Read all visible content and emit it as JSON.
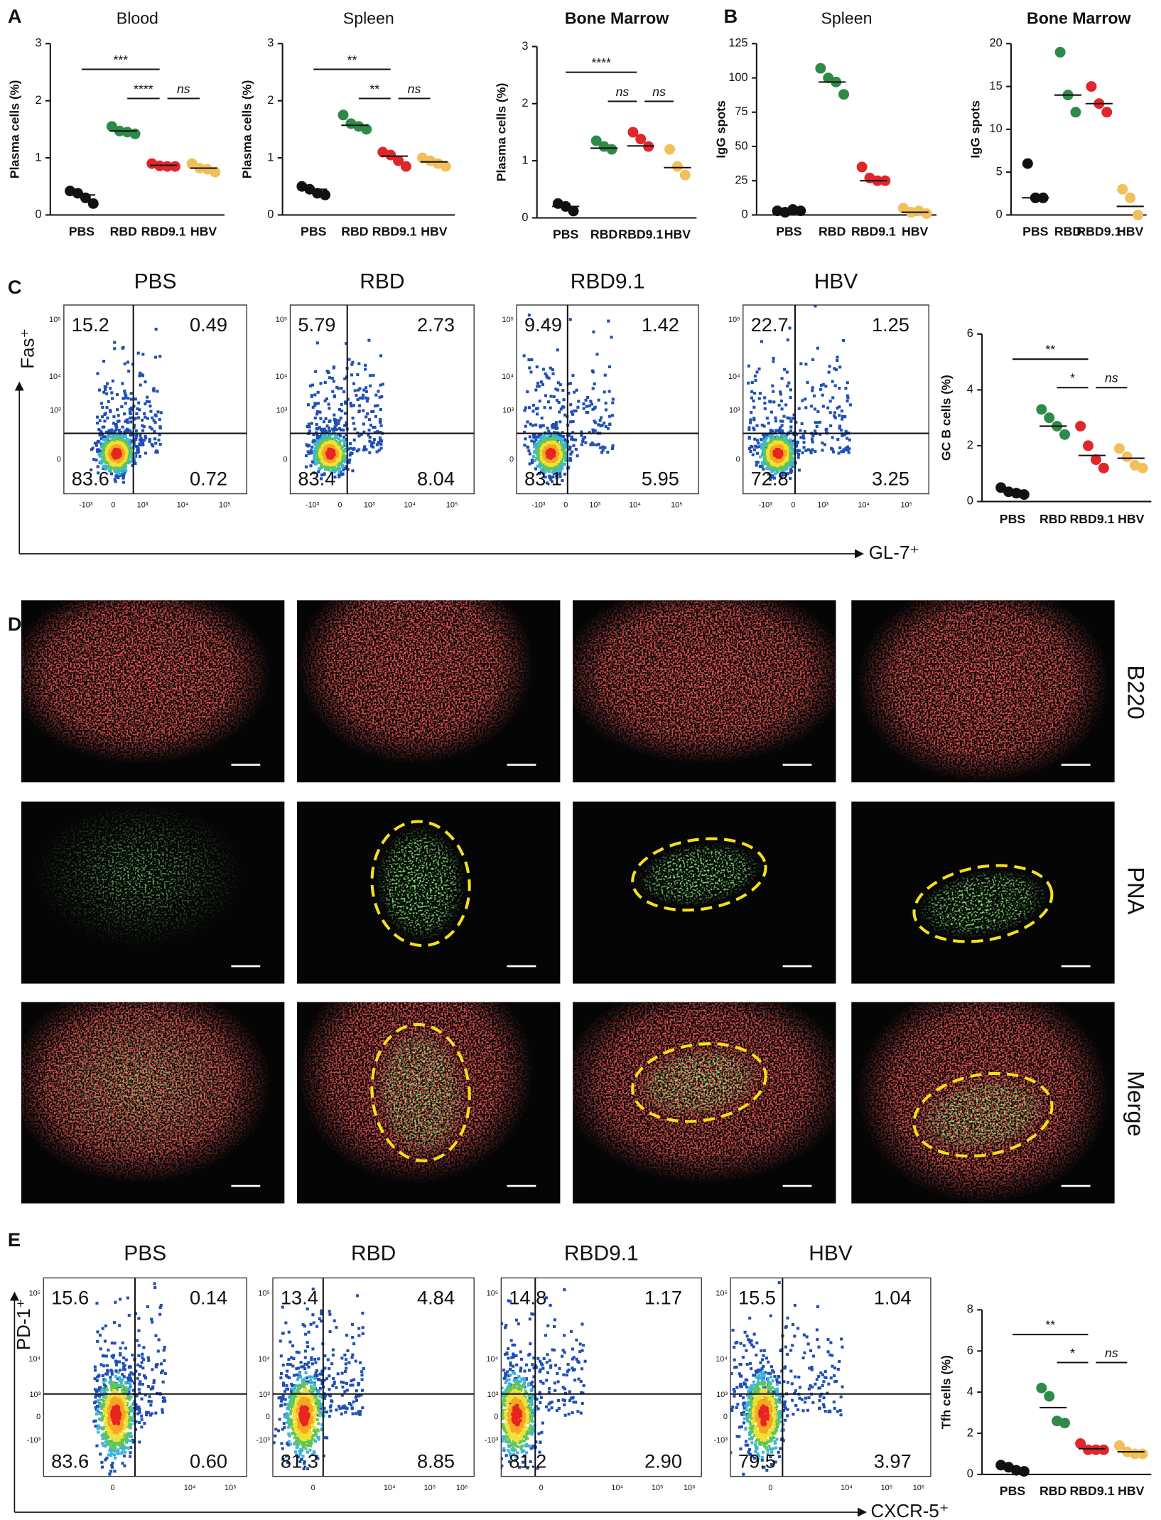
{
  "panel_labels": [
    "A",
    "B",
    "C",
    "D",
    "E"
  ],
  "chart_data": [
    {
      "type": "dot",
      "title": "Blood",
      "ylabel": "Plasma cells (%)",
      "categories": [
        "PBS",
        "RBD",
        "RBD9.1",
        "HBV"
      ],
      "colors": [
        "#111111",
        "#2e8b47",
        "#e0262b",
        "#f2bf5a"
      ],
      "values": [
        [
          0.42,
          0.38,
          0.3,
          0.2
        ],
        [
          1.55,
          1.47,
          1.45,
          1.42
        ],
        [
          0.9,
          0.86,
          0.85,
          0.85
        ],
        [
          0.9,
          0.82,
          0.8,
          0.75
        ]
      ],
      "means": [
        0.35,
        1.47,
        0.87,
        0.82
      ],
      "ylim": [
        0,
        3
      ],
      "yticks": [
        0,
        1,
        2,
        3
      ],
      "comparisons": [
        {
          "label": "***",
          "from": 0,
          "to": 2
        },
        {
          "label": "****",
          "from": 1,
          "to": 2
        },
        {
          "label": "ns",
          "from": 2,
          "to": 3
        }
      ]
    },
    {
      "type": "dot",
      "title": "Spleen",
      "ylabel": "Plasma cells (%)",
      "categories": [
        "PBS",
        "RBD",
        "RBD9.1",
        "HBV"
      ],
      "colors": [
        "#111111",
        "#2e8b47",
        "#e0262b",
        "#f2bf5a"
      ],
      "values": [
        [
          0.5,
          0.45,
          0.38,
          0.35
        ],
        [
          1.75,
          1.6,
          1.55,
          1.5
        ],
        [
          1.1,
          1.05,
          0.95,
          0.85
        ],
        [
          1.0,
          0.95,
          0.9,
          0.85
        ]
      ],
      "means": [
        0.45,
        1.57,
        1.03,
        0.93
      ],
      "ylim": [
        0,
        3
      ],
      "yticks": [
        0,
        1,
        2,
        3
      ],
      "comparisons": [
        {
          "label": "**",
          "from": 0,
          "to": 2
        },
        {
          "label": "**",
          "from": 1,
          "to": 2
        },
        {
          "label": "ns",
          "from": 2,
          "to": 3
        }
      ]
    },
    {
      "type": "dot",
      "title": "Bone Marrow",
      "ylabel": "Plasma cells (%)",
      "categories": [
        "PBS",
        "RBD",
        "RBD9.1",
        "HBV"
      ],
      "colors": [
        "#111111",
        "#2e8b47",
        "#e0262b",
        "#f2bf5a"
      ],
      "values": [
        [
          0.25,
          0.2,
          0.12
        ],
        [
          1.35,
          1.25,
          1.2
        ],
        [
          1.5,
          1.38,
          1.25
        ],
        [
          1.2,
          0.9,
          0.75
        ]
      ],
      "means": [
        0.2,
        1.22,
        1.26,
        0.88
      ],
      "ylim": [
        0,
        3
      ],
      "yticks": [
        0,
        1,
        2,
        3
      ],
      "comparisons": [
        {
          "label": "****",
          "from": 0,
          "to": 2
        },
        {
          "label": "ns",
          "from": 1,
          "to": 2
        },
        {
          "label": "ns",
          "from": 2,
          "to": 3
        }
      ]
    },
    {
      "type": "dot",
      "title": "Spleen",
      "ylabel": "IgG spots",
      "categories": [
        "PBS",
        "RBD",
        "RBD9.1",
        "HBV"
      ],
      "colors": [
        "#111111",
        "#2e8b47",
        "#e0262b",
        "#f2bf5a"
      ],
      "values": [
        [
          3,
          2,
          4,
          3
        ],
        [
          107,
          100,
          97,
          88
        ],
        [
          35,
          27,
          25,
          25
        ],
        [
          5,
          2,
          3,
          1
        ]
      ],
      "means": [
        3,
        97,
        25,
        2
      ],
      "ylim": [
        0,
        125
      ],
      "yticks": [
        0,
        25,
        50,
        75,
        100,
        125
      ],
      "comparisons": []
    },
    {
      "type": "dot",
      "title": "Bone Marrow",
      "ylabel": "IgG spots",
      "categories": [
        "PBS",
        "RBD",
        "RBD9.1",
        "HBV"
      ],
      "colors": [
        "#111111",
        "#2e8b47",
        "#e0262b",
        "#f2bf5a"
      ],
      "values": [
        [
          6,
          2,
          2
        ],
        [
          19,
          14,
          12
        ],
        [
          15,
          13,
          12
        ],
        [
          3,
          2,
          0
        ]
      ],
      "means": [
        2,
        14,
        13,
        1
      ],
      "ylim": [
        0,
        20
      ],
      "yticks": [
        0,
        5,
        10,
        15,
        20
      ],
      "comparisons": []
    },
    {
      "type": "dot",
      "ylabel": "GC B cells (%)",
      "categories": [
        "PBS",
        "RBD",
        "RBD9.1",
        "HBV"
      ],
      "colors": [
        "#111111",
        "#2e8b47",
        "#e0262b",
        "#f2bf5a"
      ],
      "values": [
        [
          0.5,
          0.35,
          0.3,
          0.25
        ],
        [
          3.3,
          3.0,
          2.7,
          2.4
        ],
        [
          2.7,
          2.0,
          1.5,
          1.2
        ],
        [
          1.9,
          1.6,
          1.3,
          1.2
        ]
      ],
      "means": [
        0.4,
        2.7,
        1.65,
        1.55
      ],
      "ylim": [
        0,
        6
      ],
      "yticks": [
        0,
        2,
        4,
        6
      ],
      "comparisons": [
        {
          "label": "**",
          "from": 0,
          "to": 2
        },
        {
          "label": "*",
          "from": 1,
          "to": 2
        },
        {
          "label": "ns",
          "from": 2,
          "to": 3
        }
      ]
    },
    {
      "type": "dot",
      "ylabel": "Tfh cells (%)",
      "categories": [
        "PBS",
        "RBD",
        "RBD9.1",
        "HBV"
      ],
      "colors": [
        "#111111",
        "#2e8b47",
        "#e0262b",
        "#f2bf5a"
      ],
      "values": [
        [
          0.45,
          0.35,
          0.2,
          0.15
        ],
        [
          4.2,
          3.8,
          2.6,
          2.5
        ],
        [
          1.5,
          1.2,
          1.2,
          1.2
        ],
        [
          1.4,
          1.1,
          1.0,
          1.0
        ]
      ],
      "means": [
        0.3,
        3.25,
        1.25,
        1.1
      ],
      "ylim": [
        0,
        8
      ],
      "yticks": [
        0,
        2,
        4,
        6,
        8
      ],
      "comparisons": [
        {
          "label": "**",
          "from": 0,
          "to": 2
        },
        {
          "label": "*",
          "from": 1,
          "to": 2
        },
        {
          "label": "ns",
          "from": 2,
          "to": 3
        }
      ]
    }
  ],
  "flow_c": {
    "y_label": "Fas⁺",
    "x_label": "GL-7⁺",
    "y_ticks": [
      "10⁵",
      "10⁴",
      "10³",
      "0"
    ],
    "plots": [
      {
        "title": "PBS",
        "x_ticks": [
          "-10³",
          "0",
          "10³",
          "10⁴",
          "10⁵"
        ],
        "quadrants": [
          "15.2",
          "0.49",
          "83.6",
          "0.72"
        ]
      },
      {
        "title": "RBD",
        "x_ticks": [
          "-10³",
          "0",
          "10³",
          "10⁴",
          "10⁵"
        ],
        "quadrants": [
          "5.79",
          "2.73",
          "83.4",
          "8.04"
        ]
      },
      {
        "title": "RBD9.1",
        "x_ticks": [
          "-10³",
          "0",
          "10³",
          "10⁴",
          "10⁵"
        ],
        "quadrants": [
          "9.49",
          "1.42",
          "83.1",
          "5.95"
        ]
      },
      {
        "title": "HBV",
        "x_ticks": [
          "-10³",
          "0",
          "10³",
          "10⁴",
          "10⁵"
        ],
        "quadrants": [
          "22.7",
          "1.25",
          "72.8",
          "3.25"
        ]
      }
    ]
  },
  "microscopy": {
    "columns": [
      "PBS",
      "RBD",
      "RBD9.1",
      "HBV"
    ],
    "rows": [
      "B220",
      "PNA",
      "Merge"
    ]
  },
  "flow_e": {
    "y_label": "PD-1⁺",
    "x_label": "CXCR-5⁺",
    "y_ticks": [
      "10⁵",
      "10⁴",
      "10³",
      "0",
      "-10³"
    ],
    "plots": [
      {
        "title": "PBS",
        "x_ticks": [
          "0",
          "10⁴",
          "10⁵"
        ],
        "quadrants": [
          "15.6",
          "0.14",
          "83.6",
          "0.60"
        ]
      },
      {
        "title": "RBD",
        "x_ticks": [
          "0",
          "10⁴",
          "10⁵",
          "10⁶"
        ],
        "quadrants": [
          "13.4",
          "4.84",
          "81.3",
          "8.85"
        ]
      },
      {
        "title": "RBD9.1",
        "x_ticks": [
          "0",
          "10⁴",
          "10⁵",
          "10⁶"
        ],
        "quadrants": [
          "14.8",
          "1.17",
          "81.2",
          "2.90"
        ]
      },
      {
        "title": "HBV",
        "x_ticks": [
          "0",
          "10⁴",
          "10⁵",
          "10⁶"
        ],
        "quadrants": [
          "15.5",
          "1.04",
          "79.5",
          "3.97"
        ]
      }
    ]
  }
}
